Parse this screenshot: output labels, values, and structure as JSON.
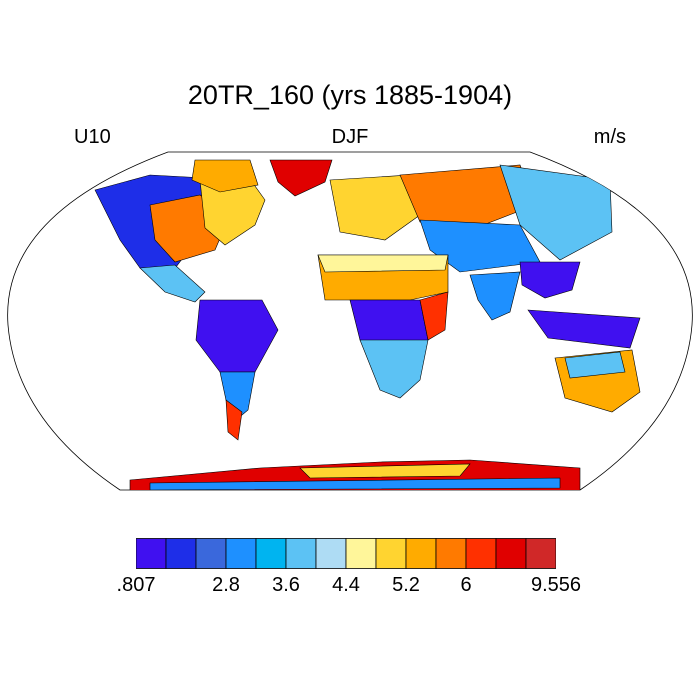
{
  "title": "20TR_160 (yrs 1885-1904)",
  "left_label": "U10",
  "center_label": "DJF",
  "right_label": "m/s",
  "colorbar": {
    "colors": [
      "#4010f0",
      "#1e2ee8",
      "#3a68dc",
      "#1e90ff",
      "#00b4f0",
      "#5cc2f4",
      "#aedcf4",
      "#fff69a",
      "#ffd430",
      "#ffab00",
      "#ff7a00",
      "#ff3000",
      "#e00000",
      "#d02828"
    ],
    "tick_labels": [
      ".807",
      "2.8",
      "3.6",
      "4.4",
      "5.2",
      "6",
      "9.556"
    ],
    "tick_boundaries": [
      0,
      3,
      5,
      7,
      9,
      11,
      14
    ]
  },
  "map_regions": [
    {
      "name": "north-america-west",
      "color": "#1e2ee8"
    },
    {
      "name": "north-america-plains",
      "color": "#ff7a00"
    },
    {
      "name": "north-america-east",
      "color": "#ffd430"
    },
    {
      "name": "greenland",
      "color": "#e00000"
    },
    {
      "name": "south-america-amazon",
      "color": "#4010f0"
    },
    {
      "name": "patagonia",
      "color": "#ff3000"
    },
    {
      "name": "sahara",
      "color": "#ffab00"
    },
    {
      "name": "central-africa",
      "color": "#4010f0"
    },
    {
      "name": "southern-africa",
      "color": "#5cc2f4"
    },
    {
      "name": "europe",
      "color": "#ffd430"
    },
    {
      "name": "russia",
      "color": "#ff7a00"
    },
    {
      "name": "siberia",
      "color": "#5cc2f4"
    },
    {
      "name": "india",
      "color": "#1e90ff"
    },
    {
      "name": "southeast-asia",
      "color": "#4010f0"
    },
    {
      "name": "australia",
      "color": "#ffab00"
    },
    {
      "name": "antarctica",
      "color": "#e00000"
    }
  ]
}
